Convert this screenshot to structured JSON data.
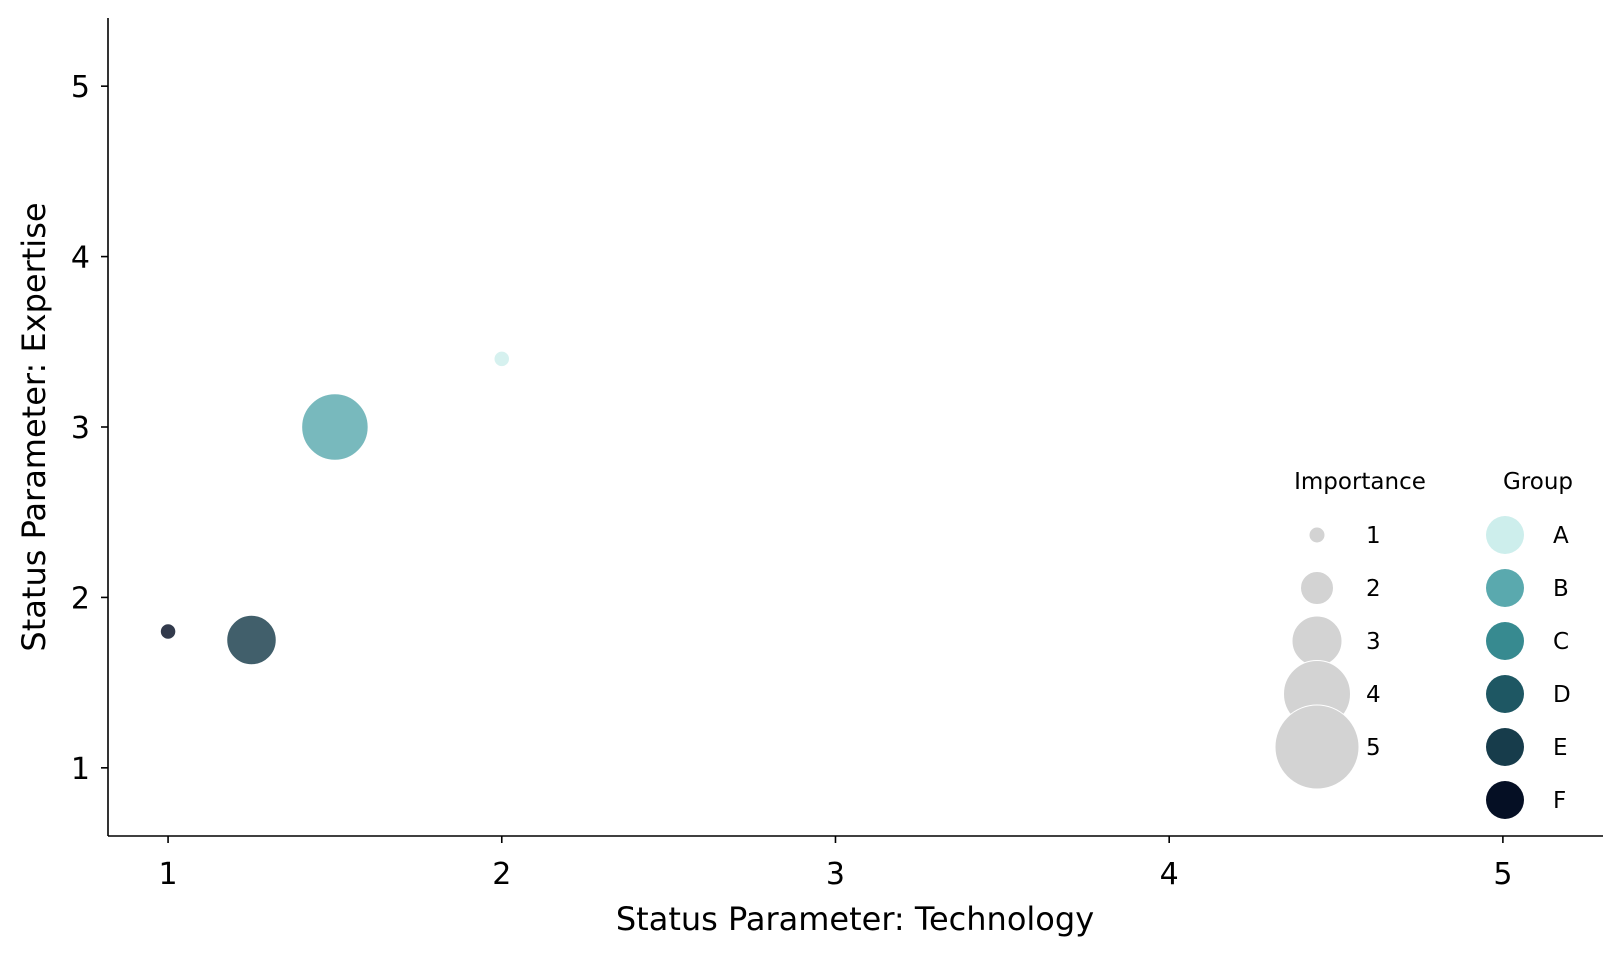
{
  "chart_data": {
    "type": "scatter",
    "title": "",
    "xlabel": "Status Parameter: Technology",
    "ylabel": "Status Parameter: Expertise",
    "xlim": [
      0.82,
      5.3
    ],
    "ylim": [
      0.6,
      5.4
    ],
    "xticks": [
      "1",
      "2",
      "3",
      "4",
      "5"
    ],
    "yticks": [
      "1",
      "2",
      "3",
      "4",
      "5"
    ],
    "grid": false,
    "points": [
      {
        "x": 2.0,
        "y": 3.4,
        "group": "A",
        "importance": 1
      },
      {
        "x": 1.5,
        "y": 3.0,
        "group": "B",
        "importance": 4
      },
      {
        "x": 1.25,
        "y": 1.75,
        "group": "E",
        "importance": 3
      },
      {
        "x": 1.0,
        "y": 1.8,
        "group": "F",
        "importance": 1
      }
    ],
    "size_legend": {
      "title": "Importance",
      "entries": [
        "1",
        "2",
        "3",
        "4",
        "5"
      ],
      "color": "#d3d3d3"
    },
    "group_legend": {
      "title": "Group",
      "entries": [
        {
          "label": "A",
          "color": "#cdeeec"
        },
        {
          "label": "B",
          "color": "#5aa9ae"
        },
        {
          "label": "C",
          "color": "#378a90"
        },
        {
          "label": "D",
          "color": "#1e5763"
        },
        {
          "label": "E",
          "color": "#173c4b"
        },
        {
          "label": "F",
          "color": "#050f24"
        }
      ]
    },
    "legend_placement": "lower-right"
  }
}
